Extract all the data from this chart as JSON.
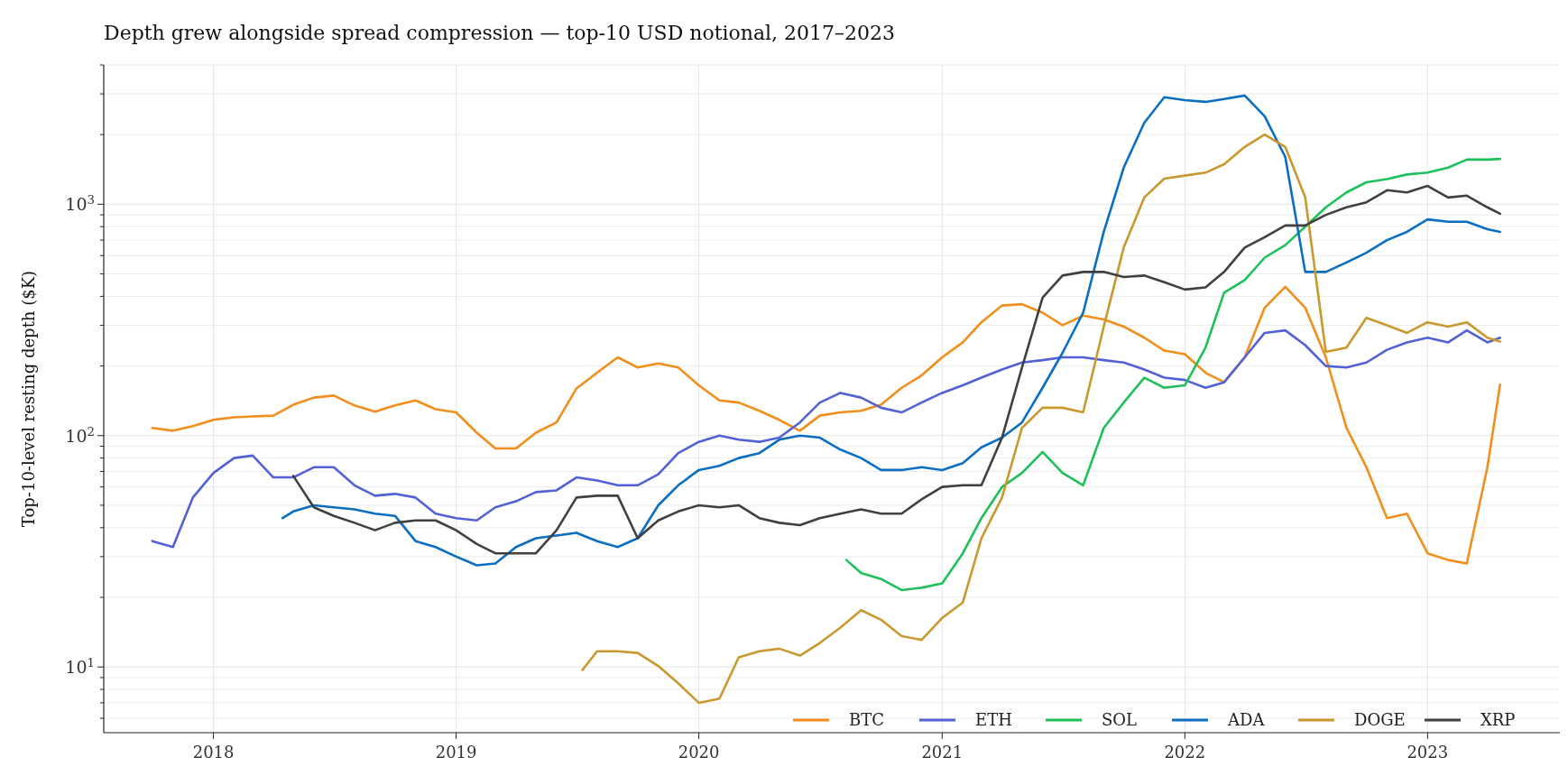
{
  "chart_data": {
    "type": "line",
    "title": "Depth grew alongside spread compression — top-10 USD notional, 2017–2023",
    "ylabel": "Top-10-level resting depth ($K)",
    "log": "y",
    "grid": true,
    "legend": "bottom right",
    "line_style": "solid",
    "marker": "none",
    "xlim": [
      "2017-07-20",
      "2023-07-19"
    ],
    "xticks": [
      "2018",
      "2019",
      "2020",
      "2021",
      "2022",
      "2023"
    ],
    "ylim": [
      5.2,
      4000
    ],
    "yticks": [
      {
        "value": 6,
        "label": null
      },
      {
        "value": 7,
        "label": null
      },
      {
        "value": 8,
        "label": null
      },
      {
        "value": 9,
        "label": null
      },
      {
        "value": 10,
        "label": "10$^{1}$"
      },
      {
        "value": 20,
        "label": null
      },
      {
        "value": 30,
        "label": null
      },
      {
        "value": 40,
        "label": null
      },
      {
        "value": 50,
        "label": null
      },
      {
        "value": 60,
        "label": null
      },
      {
        "value": 70,
        "label": null
      },
      {
        "value": 80,
        "label": null
      },
      {
        "value": 90,
        "label": null
      },
      {
        "value": 100,
        "label": "10$^{2}$"
      },
      {
        "value": 200,
        "label": null
      },
      {
        "value": 300,
        "label": null
      },
      {
        "value": 400,
        "label": null
      },
      {
        "value": 500,
        "label": null
      },
      {
        "value": 600,
        "label": null
      },
      {
        "value": 700,
        "label": null
      },
      {
        "value": 800,
        "label": null
      },
      {
        "value": 900,
        "label": null
      },
      {
        "value": 1000,
        "label": "10$^{3}$"
      },
      {
        "value": 2000,
        "label": null
      },
      {
        "value": 3000,
        "label": null
      },
      {
        "value": 4000,
        "label": null
      }
    ],
    "series": [
      {
        "name": "BTC",
        "color": "#f28e1c",
        "x": [
          "2017-10",
          "2017-11",
          "2017-12",
          "2018-01",
          "2018-02",
          "2018-03",
          "2018-04",
          "2018-05",
          "2018-06",
          "2018-07",
          "2018-08",
          "2018-09",
          "2018-10",
          "2018-11",
          "2018-12",
          "2019-01",
          "2019-02",
          "2019-03",
          "2019-04",
          "2019-05",
          "2019-06",
          "2019-07",
          "2019-08",
          "2019-09",
          "2019-10",
          "2019-11",
          "2019-12",
          "2020-01",
          "2020-02",
          "2020-03",
          "2020-04",
          "2020-05",
          "2020-06",
          "2020-07",
          "2020-08",
          "2020-09",
          "2020-10",
          "2020-11",
          "2020-12",
          "2021-01",
          "2021-02",
          "2021-03",
          "2021-04",
          "2021-05",
          "2021-06",
          "2021-07",
          "2021-08",
          "2021-09",
          "2021-10",
          "2021-11",
          "2021-12",
          "2022-01",
          "2022-02",
          "2022-03",
          "2022-04",
          "2022-05",
          "2022-06",
          "2022-07",
          "2022-08",
          "2022-09",
          "2022-10",
          "2022-11",
          "2022-12",
          "2023-01",
          "2023-02",
          "2023-03",
          "2023-04",
          "2023-04-20"
        ],
        "values": [
          108,
          105,
          110,
          117,
          120,
          121,
          122,
          136,
          146,
          149,
          135,
          127,
          135,
          142,
          130,
          126,
          103,
          88,
          88,
          103,
          114,
          160,
          187,
          218,
          197,
          205,
          197,
          165,
          142,
          139,
          128,
          117,
          105,
          122,
          126,
          128,
          136,
          161,
          182,
          218,
          253,
          309,
          365,
          370,
          340,
          300,
          330,
          318,
          296,
          265,
          233,
          225,
          187,
          170,
          218,
          357,
          440,
          357,
          218,
          108,
          73,
          44,
          46,
          31,
          29,
          28,
          73,
          166
        ]
      },
      {
        "name": "ETH",
        "color": "#5361d6",
        "x": [
          "2017-10",
          "2017-11",
          "2017-12",
          "2018-01",
          "2018-02",
          "2018-03",
          "2018-04",
          "2018-05",
          "2018-06",
          "2018-07",
          "2018-08",
          "2018-09",
          "2018-10",
          "2018-11",
          "2018-12",
          "2019-01",
          "2019-02",
          "2019-03",
          "2019-04",
          "2019-05",
          "2019-06",
          "2019-07",
          "2019-08",
          "2019-09",
          "2019-10",
          "2019-11",
          "2019-12",
          "2020-01",
          "2020-02",
          "2020-03",
          "2020-04",
          "2020-05",
          "2020-06",
          "2020-07",
          "2020-08",
          "2020-09",
          "2020-10",
          "2020-11",
          "2020-12",
          "2021-01",
          "2021-02",
          "2021-03",
          "2021-04",
          "2021-05",
          "2021-06",
          "2021-07",
          "2021-08",
          "2021-09",
          "2021-10",
          "2021-11",
          "2021-12",
          "2022-01",
          "2022-02",
          "2022-03",
          "2022-04",
          "2022-05",
          "2022-06",
          "2022-07",
          "2022-08",
          "2022-09",
          "2022-10",
          "2022-11",
          "2022-12",
          "2023-01",
          "2023-02",
          "2023-03",
          "2023-04",
          "2023-04-20"
        ],
        "values": [
          35,
          33,
          54,
          69,
          80,
          82,
          66,
          66,
          73,
          73,
          61,
          55,
          56,
          54,
          46,
          44,
          43,
          49,
          52,
          57,
          58,
          66,
          64,
          61,
          61,
          68,
          84,
          94,
          100,
          96,
          94,
          98,
          114,
          139,
          153,
          146,
          132,
          126,
          139,
          153,
          165,
          178,
          193,
          207,
          212,
          218,
          218,
          212,
          207,
          193,
          178,
          174,
          161,
          170,
          218,
          278,
          285,
          246,
          200,
          197,
          207,
          235,
          253,
          265,
          253,
          285,
          253,
          265
        ]
      },
      {
        "name": "SOL",
        "color": "#1ec05a",
        "x": [
          "2020-08-10",
          "2020-09",
          "2020-10",
          "2020-11",
          "2020-12",
          "2021-01",
          "2021-02",
          "2021-03",
          "2021-04",
          "2021-05",
          "2021-06",
          "2021-07",
          "2021-08",
          "2021-09",
          "2021-10",
          "2021-11",
          "2021-12",
          "2022-01",
          "2022-02",
          "2022-03",
          "2022-04",
          "2022-05",
          "2022-06",
          "2022-07",
          "2022-08",
          "2022-09",
          "2022-10",
          "2022-11",
          "2022-12",
          "2023-01",
          "2023-02",
          "2023-03",
          "2023-04",
          "2023-04-20"
        ],
        "values": [
          29,
          25.5,
          24,
          21.5,
          22,
          23,
          31,
          44,
          60,
          69,
          85,
          69,
          61,
          108,
          139,
          178,
          161,
          165,
          240,
          415,
          470,
          588,
          666,
          800,
          970,
          1125,
          1245,
          1285,
          1345,
          1370,
          1440,
          1560,
          1560,
          1570
        ]
      },
      {
        "name": "ADA",
        "color": "#0a6fc2",
        "x": [
          "2018-04-15",
          "2018-05",
          "2018-06",
          "2018-07",
          "2018-08",
          "2018-09",
          "2018-10",
          "2018-11",
          "2018-12",
          "2019-01",
          "2019-02",
          "2019-03",
          "2019-04",
          "2019-05",
          "2019-06",
          "2019-07",
          "2019-08",
          "2019-09",
          "2019-10",
          "2019-11",
          "2019-12",
          "2020-01",
          "2020-02",
          "2020-03",
          "2020-04",
          "2020-05",
          "2020-06",
          "2020-07",
          "2020-08",
          "2020-09",
          "2020-10",
          "2020-11",
          "2020-12",
          "2021-01",
          "2021-02",
          "2021-03",
          "2021-04",
          "2021-05",
          "2021-06",
          "2021-07",
          "2021-08",
          "2021-09",
          "2021-10",
          "2021-11",
          "2021-12",
          "2022-01",
          "2022-02",
          "2022-03",
          "2022-04",
          "2022-05",
          "2022-06",
          "2022-07",
          "2022-08",
          "2022-09",
          "2022-10",
          "2022-11",
          "2022-12",
          "2023-01",
          "2023-02",
          "2023-03",
          "2023-04",
          "2023-04-20"
        ],
        "values": [
          44,
          47,
          50,
          49,
          48,
          46,
          45,
          35,
          33,
          30,
          27.5,
          28,
          33,
          36,
          37,
          38,
          35,
          33,
          36,
          50,
          61,
          71,
          74,
          80,
          84,
          96,
          100,
          98,
          87,
          80,
          71,
          71,
          73,
          71,
          76,
          89,
          98,
          114,
          161,
          228,
          340,
          760,
          1440,
          2250,
          2900,
          2820,
          2770,
          2850,
          2950,
          2400,
          1600,
          510,
          510,
          560,
          617,
          700,
          760,
          860,
          840,
          840,
          780,
          760
        ]
      },
      {
        "name": "DOGE",
        "color": "#c9982e",
        "x": [
          "2019-07-10",
          "2019-08",
          "2019-09",
          "2019-10",
          "2019-11",
          "2019-12",
          "2020-01",
          "2020-02",
          "2020-03",
          "2020-04",
          "2020-05",
          "2020-06",
          "2020-07",
          "2020-08",
          "2020-09",
          "2020-10",
          "2020-11",
          "2020-12",
          "2021-01",
          "2021-02",
          "2021-03",
          "2021-04",
          "2021-05",
          "2021-06",
          "2021-07",
          "2021-08",
          "2021-09",
          "2021-10",
          "2021-11",
          "2021-12",
          "2022-01",
          "2022-02",
          "2022-03",
          "2022-04",
          "2022-05",
          "2022-06",
          "2022-07",
          "2022-08",
          "2022-09",
          "2022-10",
          "2022-11",
          "2022-12",
          "2023-01",
          "2023-02",
          "2023-03",
          "2023-04",
          "2023-04-20"
        ],
        "values": [
          9.7,
          11.7,
          11.7,
          11.5,
          10.1,
          8.5,
          7,
          7.3,
          11,
          11.7,
          12,
          11.2,
          12.7,
          14.8,
          17.6,
          16,
          13.6,
          13.1,
          16.3,
          19,
          36,
          54,
          108,
          132,
          132,
          126,
          296,
          650,
          1070,
          1290,
          1330,
          1370,
          1490,
          1770,
          2000,
          1770,
          1070,
          230,
          240,
          323,
          300,
          278,
          309,
          296,
          309,
          265,
          255
        ]
      },
      {
        "name": "XRP",
        "color": "#404040",
        "x": [
          "2018-05",
          "2018-06",
          "2018-07",
          "2018-08",
          "2018-09",
          "2018-10",
          "2018-11",
          "2018-12",
          "2019-01",
          "2019-02",
          "2019-03",
          "2019-04",
          "2019-05",
          "2019-06",
          "2019-07",
          "2019-08",
          "2019-09",
          "2019-10",
          "2019-11",
          "2019-12",
          "2020-01",
          "2020-02",
          "2020-03",
          "2020-04",
          "2020-05",
          "2020-06",
          "2020-07",
          "2020-08",
          "2020-09",
          "2020-10",
          "2020-11",
          "2020-12",
          "2021-01",
          "2021-02",
          "2021-03",
          "2021-04",
          "2021-05",
          "2021-06",
          "2021-07",
          "2021-08",
          "2021-09",
          "2021-10",
          "2021-11",
          "2021-12",
          "2022-01",
          "2022-02",
          "2022-03",
          "2022-04",
          "2022-05",
          "2022-06",
          "2022-07",
          "2022-08",
          "2022-09",
          "2022-10",
          "2022-11",
          "2022-12",
          "2023-01",
          "2023-02",
          "2023-03",
          "2023-04",
          "2023-04-20"
        ],
        "values": [
          67,
          49,
          45,
          42,
          39,
          42,
          43,
          43,
          39,
          34,
          31,
          31,
          31,
          39,
          54,
          55,
          55,
          36,
          43,
          47,
          50,
          49,
          50,
          44,
          42,
          41,
          44,
          46,
          48,
          46,
          46,
          53,
          60,
          61,
          61,
          98,
          197,
          395,
          492,
          510,
          510,
          485,
          492,
          460,
          428,
          437,
          510,
          650,
          720,
          810,
          810,
          900,
          970,
          1020,
          1150,
          1125,
          1200,
          1070,
          1090,
          970,
          910
        ]
      }
    ]
  }
}
